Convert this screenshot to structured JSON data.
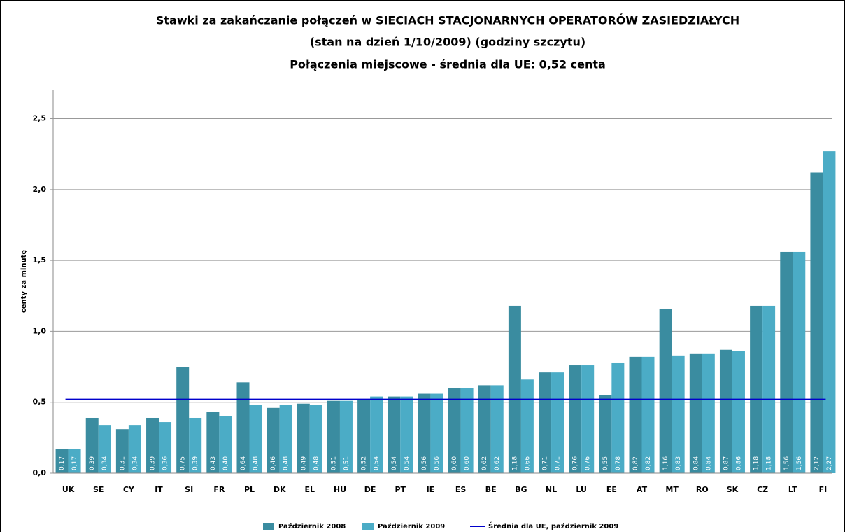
{
  "chart_data": {
    "type": "bar",
    "title_lines": [
      "Stawki za zakańczanie połączeń w SIECIACH STACJONARNYCH OPERATORÓW ZASIEDZIAŁYCH",
      "(stan na dzień 1/10/2009) (godziny szczytu)",
      "Połączenia miejscowe - średnia dla UE: 0,52 centa"
    ],
    "y_label": "centy za minutę",
    "categories": [
      "UK",
      "SE",
      "CY",
      "IT",
      "SI",
      "FR",
      "PL",
      "DK",
      "EL",
      "HU",
      "DE",
      "PT",
      "IE",
      "ES",
      "BE",
      "BG",
      "NL",
      "LU",
      "EE",
      "AT",
      "MT",
      "RO",
      "SK",
      "CZ",
      "LT",
      "FI"
    ],
    "series": [
      {
        "name": "Październik 2008",
        "color": "#3a8ca0",
        "values": [
          0.17,
          0.39,
          0.31,
          0.39,
          0.75,
          0.43,
          0.64,
          0.46,
          0.49,
          0.51,
          0.52,
          0.54,
          0.56,
          0.6,
          0.62,
          1.18,
          0.71,
          0.76,
          0.55,
          0.82,
          1.16,
          0.84,
          0.87,
          1.18,
          1.56,
          2.12
        ],
        "value_labels": [
          "0,17",
          "0,39",
          "0,31",
          "0,39",
          "0,75",
          "0,43",
          "0,64",
          "0,46",
          "0,49",
          "0,51",
          "0,52",
          "0,54",
          "0,56",
          "0,60",
          "0,62",
          "1,18",
          "0,71",
          "0,76",
          "0,55",
          "0,82",
          "1,16",
          "0,84",
          "0,87",
          "1,18",
          "1,56",
          "2,12"
        ]
      },
      {
        "name": "Październik 2009",
        "color": "#4bacc6",
        "values": [
          0.17,
          0.34,
          0.34,
          0.36,
          0.39,
          0.4,
          0.48,
          0.48,
          0.48,
          0.51,
          0.54,
          0.54,
          0.56,
          0.6,
          0.62,
          0.66,
          0.71,
          0.76,
          0.78,
          0.82,
          0.83,
          0.84,
          0.86,
          1.18,
          1.56,
          2.27
        ],
        "value_labels": [
          "0,17",
          "0,34",
          "0,34",
          "0,36",
          "0,39",
          "0,40",
          "0,48",
          "0,48",
          "0,48",
          "0,51",
          "0,54",
          "0,54",
          "0,56",
          "0,60",
          "0,62",
          "0,66",
          "0,71",
          "0,76",
          "0,78",
          "0,82",
          "0,83",
          "0,84",
          "0,86",
          "1,18",
          "1,56",
          "2,27"
        ]
      }
    ],
    "reference_line": {
      "name": "Średnia dla UE, październik 2009",
      "value": 0.52,
      "color": "#0000cc"
    },
    "ylim": [
      0,
      2.7
    ],
    "yticks": [
      {
        "value": 0,
        "label": "0,0"
      },
      {
        "value": 0.5,
        "label": "0,5"
      },
      {
        "value": 1,
        "label": "1,0"
      },
      {
        "value": 1.5,
        "label": "1,5"
      },
      {
        "value": 2,
        "label": "2,0"
      },
      {
        "value": 2.5,
        "label": "2,5"
      }
    ],
    "grid": true
  }
}
